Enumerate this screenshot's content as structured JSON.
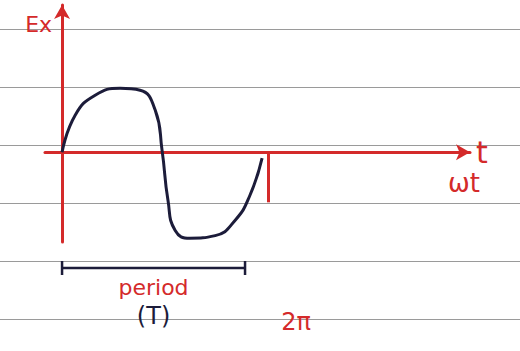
{
  "chart_data": {
    "type": "line",
    "x_label": "t",
    "y_label": "Ex",
    "annotations": [
      "ωt"
    ],
    "period": {
      "label": "period",
      "symbol": "(T)",
      "start": 0,
      "end": 5.58
    },
    "series": [
      {
        "name": "Ex",
        "color": "#1c1c3a",
        "x": [
          0,
          0.4,
          1.01,
          1.77,
          2.38,
          2.84,
          3.05,
          3.23,
          3.45,
          3.9,
          4.67,
          5.28,
          5.73,
          6.1
        ],
        "values": [
          0,
          0.58,
          0.89,
          1.0,
          0.97,
          0.66,
          0.03,
          -0.75,
          -1.22,
          -1.34,
          -1.3,
          -1.06,
          -0.67,
          -0.09
        ]
      }
    ],
    "xlim": [
      -0.52,
      12.44
    ],
    "ylim": [
      -1.4,
      2.3
    ],
    "xticks": [
      {
        "value": 6.283,
        "label": "2π"
      }
    ],
    "yticks": [],
    "tick_labels": "x",
    "grid": false
  }
}
